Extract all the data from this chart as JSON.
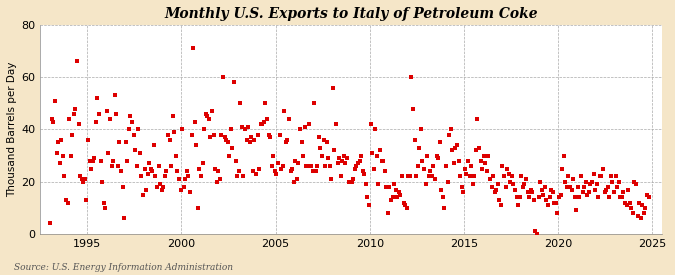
{
  "title": "Monthly U.S. Exports to Italy of Petroleum Coke",
  "ylabel": "Thousand Barrels per Day",
  "source": "Source: U.S. Energy Information Administration",
  "figure_bg": "#f5e6c8",
  "axes_bg": "#ffffff",
  "dot_color": "#dd0000",
  "ylim": [
    0,
    80
  ],
  "yticks": [
    0,
    20,
    40,
    60,
    80
  ],
  "xlim_start": 1992.5,
  "xlim_end": 2025.5,
  "xticks": [
    1995,
    2000,
    2005,
    2010,
    2015,
    2020,
    2025
  ],
  "data": [
    [
      1993,
      1,
      4
    ],
    [
      1993,
      2,
      44
    ],
    [
      1993,
      3,
      43
    ],
    [
      1993,
      4,
      51
    ],
    [
      1993,
      5,
      31
    ],
    [
      1993,
      6,
      35
    ],
    [
      1993,
      7,
      27
    ],
    [
      1993,
      8,
      36
    ],
    [
      1993,
      9,
      30
    ],
    [
      1993,
      10,
      22
    ],
    [
      1993,
      11,
      13
    ],
    [
      1993,
      12,
      12
    ],
    [
      1994,
      1,
      44
    ],
    [
      1994,
      2,
      30
    ],
    [
      1994,
      3,
      38
    ],
    [
      1994,
      4,
      46
    ],
    [
      1994,
      5,
      48
    ],
    [
      1994,
      6,
      66
    ],
    [
      1994,
      7,
      42
    ],
    [
      1994,
      8,
      22
    ],
    [
      1994,
      9,
      21
    ],
    [
      1994,
      10,
      20
    ],
    [
      1994,
      11,
      21
    ],
    [
      1994,
      12,
      13
    ],
    [
      1995,
      1,
      36
    ],
    [
      1995,
      2,
      28
    ],
    [
      1995,
      3,
      25
    ],
    [
      1995,
      4,
      28
    ],
    [
      1995,
      5,
      29
    ],
    [
      1995,
      6,
      43
    ],
    [
      1995,
      7,
      52
    ],
    [
      1995,
      8,
      46
    ],
    [
      1995,
      9,
      28
    ],
    [
      1995,
      10,
      20
    ],
    [
      1995,
      11,
      12
    ],
    [
      1995,
      12,
      10
    ],
    [
      1996,
      1,
      47
    ],
    [
      1996,
      2,
      31
    ],
    [
      1996,
      3,
      44
    ],
    [
      1996,
      4,
      26
    ],
    [
      1996,
      5,
      28
    ],
    [
      1996,
      6,
      53
    ],
    [
      1996,
      7,
      46
    ],
    [
      1996,
      8,
      26
    ],
    [
      1996,
      9,
      35
    ],
    [
      1996,
      10,
      24
    ],
    [
      1996,
      11,
      18
    ],
    [
      1996,
      12,
      6
    ],
    [
      1997,
      1,
      35
    ],
    [
      1997,
      2,
      28
    ],
    [
      1997,
      3,
      40
    ],
    [
      1997,
      4,
      45
    ],
    [
      1997,
      5,
      43
    ],
    [
      1997,
      6,
      38
    ],
    [
      1997,
      7,
      32
    ],
    [
      1997,
      8,
      26
    ],
    [
      1997,
      9,
      40
    ],
    [
      1997,
      10,
      31
    ],
    [
      1997,
      11,
      22
    ],
    [
      1997,
      12,
      15
    ],
    [
      1998,
      1,
      25
    ],
    [
      1998,
      2,
      17
    ],
    [
      1998,
      3,
      23
    ],
    [
      1998,
      4,
      27
    ],
    [
      1998,
      5,
      25
    ],
    [
      1998,
      6,
      24
    ],
    [
      1998,
      7,
      34
    ],
    [
      1998,
      8,
      22
    ],
    [
      1998,
      9,
      18
    ],
    [
      1998,
      10,
      26
    ],
    [
      1998,
      11,
      19
    ],
    [
      1998,
      12,
      17
    ],
    [
      1999,
      1,
      18
    ],
    [
      1999,
      2,
      22
    ],
    [
      1999,
      3,
      24
    ],
    [
      1999,
      4,
      38
    ],
    [
      1999,
      5,
      36
    ],
    [
      1999,
      6,
      26
    ],
    [
      1999,
      7,
      45
    ],
    [
      1999,
      8,
      39
    ],
    [
      1999,
      9,
      30
    ],
    [
      1999,
      10,
      24
    ],
    [
      1999,
      11,
      21
    ],
    [
      1999,
      12,
      17
    ],
    [
      2000,
      1,
      40
    ],
    [
      2000,
      2,
      18
    ],
    [
      2000,
      3,
      21
    ],
    [
      2000,
      4,
      24
    ],
    [
      2000,
      5,
      22
    ],
    [
      2000,
      6,
      16
    ],
    [
      2000,
      7,
      38
    ],
    [
      2000,
      8,
      71
    ],
    [
      2000,
      9,
      43
    ],
    [
      2000,
      10,
      34
    ],
    [
      2000,
      11,
      10
    ],
    [
      2000,
      12,
      25
    ],
    [
      2001,
      1,
      22
    ],
    [
      2001,
      2,
      27
    ],
    [
      2001,
      3,
      40
    ],
    [
      2001,
      4,
      46
    ],
    [
      2001,
      5,
      45
    ],
    [
      2001,
      6,
      44
    ],
    [
      2001,
      7,
      37
    ],
    [
      2001,
      8,
      47
    ],
    [
      2001,
      9,
      38
    ],
    [
      2001,
      10,
      25
    ],
    [
      2001,
      11,
      20
    ],
    [
      2001,
      12,
      24
    ],
    [
      2002,
      1,
      21
    ],
    [
      2002,
      2,
      38
    ],
    [
      2002,
      3,
      60
    ],
    [
      2002,
      4,
      37
    ],
    [
      2002,
      5,
      36
    ],
    [
      2002,
      6,
      35
    ],
    [
      2002,
      7,
      30
    ],
    [
      2002,
      8,
      40
    ],
    [
      2002,
      9,
      33
    ],
    [
      2002,
      10,
      58
    ],
    [
      2002,
      11,
      28
    ],
    [
      2002,
      12,
      22
    ],
    [
      2003,
      1,
      24
    ],
    [
      2003,
      2,
      50
    ],
    [
      2003,
      3,
      41
    ],
    [
      2003,
      4,
      22
    ],
    [
      2003,
      5,
      40
    ],
    [
      2003,
      6,
      36
    ],
    [
      2003,
      7,
      41
    ],
    [
      2003,
      8,
      35
    ],
    [
      2003,
      9,
      37
    ],
    [
      2003,
      10,
      24
    ],
    [
      2003,
      11,
      36
    ],
    [
      2003,
      12,
      23
    ],
    [
      2004,
      1,
      38
    ],
    [
      2004,
      2,
      25
    ],
    [
      2004,
      3,
      42
    ],
    [
      2004,
      4,
      42
    ],
    [
      2004,
      5,
      43
    ],
    [
      2004,
      6,
      50
    ],
    [
      2004,
      7,
      44
    ],
    [
      2004,
      8,
      38
    ],
    [
      2004,
      9,
      37
    ],
    [
      2004,
      10,
      26
    ],
    [
      2004,
      11,
      30
    ],
    [
      2004,
      12,
      24
    ],
    [
      2005,
      1,
      23
    ],
    [
      2005,
      2,
      27
    ],
    [
      2005,
      3,
      38
    ],
    [
      2005,
      4,
      25
    ],
    [
      2005,
      5,
      26
    ],
    [
      2005,
      6,
      47
    ],
    [
      2005,
      7,
      35
    ],
    [
      2005,
      8,
      36
    ],
    [
      2005,
      9,
      44
    ],
    [
      2005,
      10,
      24
    ],
    [
      2005,
      11,
      25
    ],
    [
      2005,
      12,
      20
    ],
    [
      2006,
      1,
      28
    ],
    [
      2006,
      2,
      21
    ],
    [
      2006,
      3,
      27
    ],
    [
      2006,
      4,
      40
    ],
    [
      2006,
      5,
      35
    ],
    [
      2006,
      6,
      30
    ],
    [
      2006,
      7,
      41
    ],
    [
      2006,
      8,
      26
    ],
    [
      2006,
      9,
      26
    ],
    [
      2006,
      10,
      42
    ],
    [
      2006,
      11,
      26
    ],
    [
      2006,
      12,
      24
    ],
    [
      2007,
      1,
      50
    ],
    [
      2007,
      2,
      24
    ],
    [
      2007,
      3,
      26
    ],
    [
      2007,
      4,
      37
    ],
    [
      2007,
      5,
      33
    ],
    [
      2007,
      6,
      30
    ],
    [
      2007,
      7,
      36
    ],
    [
      2007,
      8,
      26
    ],
    [
      2007,
      9,
      35
    ],
    [
      2007,
      10,
      29
    ],
    [
      2007,
      11,
      26
    ],
    [
      2007,
      12,
      21
    ],
    [
      2008,
      1,
      56
    ],
    [
      2008,
      2,
      32
    ],
    [
      2008,
      3,
      42
    ],
    [
      2008,
      4,
      27
    ],
    [
      2008,
      5,
      29
    ],
    [
      2008,
      6,
      22
    ],
    [
      2008,
      7,
      28
    ],
    [
      2008,
      8,
      30
    ],
    [
      2008,
      9,
      27
    ],
    [
      2008,
      10,
      29
    ],
    [
      2008,
      11,
      20
    ],
    [
      2008,
      12,
      20
    ],
    [
      2009,
      1,
      20
    ],
    [
      2009,
      2,
      21
    ],
    [
      2009,
      3,
      25
    ],
    [
      2009,
      4,
      26
    ],
    [
      2009,
      5,
      27
    ],
    [
      2009,
      6,
      28
    ],
    [
      2009,
      7,
      30
    ],
    [
      2009,
      8,
      24
    ],
    [
      2009,
      9,
      23
    ],
    [
      2009,
      10,
      19
    ],
    [
      2009,
      11,
      14
    ],
    [
      2009,
      12,
      11
    ],
    [
      2010,
      1,
      42
    ],
    [
      2010,
      2,
      31
    ],
    [
      2010,
      3,
      25
    ],
    [
      2010,
      4,
      40
    ],
    [
      2010,
      5,
      30
    ],
    [
      2010,
      6,
      19
    ],
    [
      2010,
      7,
      32
    ],
    [
      2010,
      8,
      28
    ],
    [
      2010,
      9,
      28
    ],
    [
      2010,
      10,
      24
    ],
    [
      2010,
      11,
      18
    ],
    [
      2010,
      12,
      8
    ],
    [
      2011,
      1,
      18
    ],
    [
      2011,
      2,
      13
    ],
    [
      2011,
      3,
      14
    ],
    [
      2011,
      4,
      19
    ],
    [
      2011,
      5,
      17
    ],
    [
      2011,
      6,
      14
    ],
    [
      2011,
      7,
      16
    ],
    [
      2011,
      8,
      15
    ],
    [
      2011,
      9,
      22
    ],
    [
      2011,
      10,
      12
    ],
    [
      2011,
      11,
      11
    ],
    [
      2011,
      12,
      10
    ],
    [
      2012,
      1,
      22
    ],
    [
      2012,
      2,
      22
    ],
    [
      2012,
      3,
      60
    ],
    [
      2012,
      4,
      48
    ],
    [
      2012,
      5,
      36
    ],
    [
      2012,
      6,
      22
    ],
    [
      2012,
      7,
      26
    ],
    [
      2012,
      8,
      33
    ],
    [
      2012,
      9,
      40
    ],
    [
      2012,
      10,
      28
    ],
    [
      2012,
      11,
      25
    ],
    [
      2012,
      12,
      19
    ],
    [
      2013,
      1,
      30
    ],
    [
      2013,
      2,
      22
    ],
    [
      2013,
      3,
      24
    ],
    [
      2013,
      4,
      22
    ],
    [
      2013,
      5,
      26
    ],
    [
      2013,
      6,
      21
    ],
    [
      2013,
      7,
      30
    ],
    [
      2013,
      8,
      29
    ],
    [
      2013,
      9,
      35
    ],
    [
      2013,
      10,
      17
    ],
    [
      2013,
      11,
      14
    ],
    [
      2013,
      12,
      10
    ],
    [
      2014,
      1,
      26
    ],
    [
      2014,
      2,
      20
    ],
    [
      2014,
      3,
      38
    ],
    [
      2014,
      4,
      40
    ],
    [
      2014,
      5,
      32
    ],
    [
      2014,
      6,
      27
    ],
    [
      2014,
      7,
      33
    ],
    [
      2014,
      8,
      34
    ],
    [
      2014,
      9,
      28
    ],
    [
      2014,
      10,
      22
    ],
    [
      2014,
      11,
      18
    ],
    [
      2014,
      12,
      16
    ],
    [
      2015,
      1,
      25
    ],
    [
      2015,
      2,
      23
    ],
    [
      2015,
      3,
      28
    ],
    [
      2015,
      4,
      22
    ],
    [
      2015,
      5,
      26
    ],
    [
      2015,
      6,
      19
    ],
    [
      2015,
      7,
      22
    ],
    [
      2015,
      8,
      32
    ],
    [
      2015,
      9,
      44
    ],
    [
      2015,
      10,
      33
    ],
    [
      2015,
      11,
      28
    ],
    [
      2015,
      12,
      25
    ],
    [
      2016,
      1,
      30
    ],
    [
      2016,
      2,
      27
    ],
    [
      2016,
      3,
      24
    ],
    [
      2016,
      4,
      30
    ],
    [
      2016,
      5,
      21
    ],
    [
      2016,
      6,
      18
    ],
    [
      2016,
      7,
      22
    ],
    [
      2016,
      8,
      16
    ],
    [
      2016,
      9,
      17
    ],
    [
      2016,
      10,
      19
    ],
    [
      2016,
      11,
      13
    ],
    [
      2016,
      12,
      11
    ],
    [
      2017,
      1,
      26
    ],
    [
      2017,
      2,
      22
    ],
    [
      2017,
      3,
      18
    ],
    [
      2017,
      4,
      25
    ],
    [
      2017,
      5,
      23
    ],
    [
      2017,
      6,
      20
    ],
    [
      2017,
      7,
      22
    ],
    [
      2017,
      8,
      19
    ],
    [
      2017,
      9,
      17
    ],
    [
      2017,
      10,
      14
    ],
    [
      2017,
      11,
      11
    ],
    [
      2017,
      12,
      14
    ],
    [
      2018,
      1,
      22
    ],
    [
      2018,
      2,
      18
    ],
    [
      2018,
      3,
      19
    ],
    [
      2018,
      4,
      21
    ],
    [
      2018,
      5,
      16
    ],
    [
      2018,
      6,
      14
    ],
    [
      2018,
      7,
      17
    ],
    [
      2018,
      8,
      16
    ],
    [
      2018,
      9,
      13
    ],
    [
      2018,
      10,
      1
    ],
    [
      2018,
      11,
      0
    ],
    [
      2018,
      12,
      14
    ],
    [
      2019,
      1,
      20
    ],
    [
      2019,
      2,
      17
    ],
    [
      2019,
      3,
      15
    ],
    [
      2019,
      4,
      18
    ],
    [
      2019,
      5,
      13
    ],
    [
      2019,
      6,
      11
    ],
    [
      2019,
      7,
      14
    ],
    [
      2019,
      8,
      17
    ],
    [
      2019,
      9,
      16
    ],
    [
      2019,
      10,
      12
    ],
    [
      2019,
      11,
      12
    ],
    [
      2019,
      12,
      8
    ],
    [
      2020,
      1,
      14
    ],
    [
      2020,
      2,
      15
    ],
    [
      2020,
      3,
      25
    ],
    [
      2020,
      4,
      30
    ],
    [
      2020,
      5,
      20
    ],
    [
      2020,
      6,
      18
    ],
    [
      2020,
      7,
      22
    ],
    [
      2020,
      8,
      18
    ],
    [
      2020,
      9,
      17
    ],
    [
      2020,
      10,
      21
    ],
    [
      2020,
      11,
      14
    ],
    [
      2020,
      12,
      9
    ],
    [
      2021,
      1,
      18
    ],
    [
      2021,
      2,
      14
    ],
    [
      2021,
      3,
      22
    ],
    [
      2021,
      4,
      16
    ],
    [
      2021,
      5,
      18
    ],
    [
      2021,
      6,
      20
    ],
    [
      2021,
      7,
      15
    ],
    [
      2021,
      8,
      16
    ],
    [
      2021,
      9,
      19
    ],
    [
      2021,
      10,
      20
    ],
    [
      2021,
      11,
      23
    ],
    [
      2021,
      12,
      17
    ],
    [
      2022,
      1,
      19
    ],
    [
      2022,
      2,
      14
    ],
    [
      2022,
      3,
      22
    ],
    [
      2022,
      4,
      22
    ],
    [
      2022,
      5,
      25
    ],
    [
      2022,
      6,
      16
    ],
    [
      2022,
      7,
      17
    ],
    [
      2022,
      8,
      18
    ],
    [
      2022,
      9,
      14
    ],
    [
      2022,
      10,
      22
    ],
    [
      2022,
      11,
      20
    ],
    [
      2022,
      12,
      16
    ],
    [
      2023,
      1,
      22
    ],
    [
      2023,
      2,
      18
    ],
    [
      2023,
      3,
      20
    ],
    [
      2023,
      4,
      14
    ],
    [
      2023,
      5,
      14
    ],
    [
      2023,
      6,
      16
    ],
    [
      2023,
      7,
      12
    ],
    [
      2023,
      8,
      11
    ],
    [
      2023,
      9,
      17
    ],
    [
      2023,
      10,
      12
    ],
    [
      2023,
      11,
      10
    ],
    [
      2023,
      12,
      8
    ],
    [
      2024,
      1,
      20
    ],
    [
      2024,
      2,
      19
    ],
    [
      2024,
      3,
      7
    ],
    [
      2024,
      4,
      12
    ],
    [
      2024,
      5,
      6
    ],
    [
      2024,
      6,
      11
    ],
    [
      2024,
      7,
      8
    ],
    [
      2024,
      8,
      10
    ],
    [
      2024,
      9,
      15
    ],
    [
      2024,
      10,
      14
    ]
  ]
}
